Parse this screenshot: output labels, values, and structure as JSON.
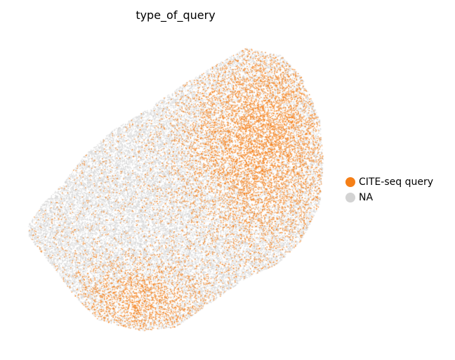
{
  "chart_data": {
    "type": "scatter",
    "title": "type_of_query",
    "xlabel": "",
    "ylabel": "",
    "axes_visible": false,
    "grid": false,
    "legend_position": "right",
    "series": [
      {
        "name": "CITE-seq query",
        "color": "#f57f17"
      },
      {
        "name": "NA",
        "color": "#d3d3d3"
      }
    ]
  }
}
